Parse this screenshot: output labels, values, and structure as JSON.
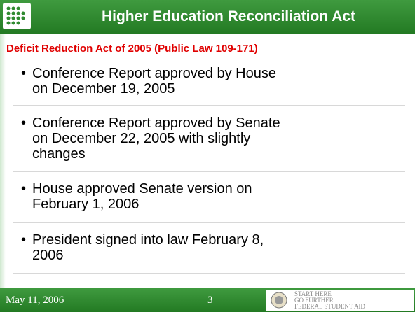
{
  "header": {
    "title": "Higher Education Reconciliation Act"
  },
  "subtitle": "Deficit Reduction Act of 2005 (Public Law 109-171)",
  "bullets": [
    [
      "Conference Report approved by House",
      "on December 19, 2005"
    ],
    [
      "Conference Report approved by Senate",
      "on December 22, 2005 with slightly",
      "changes"
    ],
    [
      "House approved Senate version on",
      "February 1, 2006"
    ],
    [
      "President signed into law February 8,",
      "2006"
    ]
  ],
  "footer": {
    "date": "May 11, 2006",
    "page": "3",
    "logo": [
      "START HERE",
      "GO FURTHER",
      "FEDERAL STUDENT AID"
    ]
  }
}
